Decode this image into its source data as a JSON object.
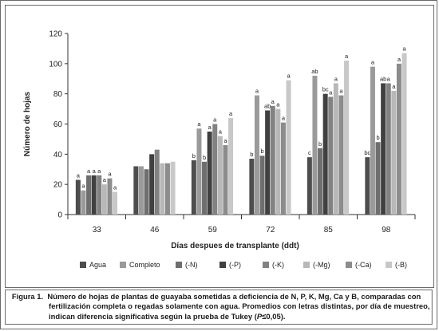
{
  "chart_data": {
    "type": "bar",
    "ylabel": "Número de hojas",
    "xlabel": "Días despues de transplante (ddt)",
    "ylim": [
      0,
      120
    ],
    "yticks": [
      "0",
      "20",
      "40",
      "60",
      "80",
      "100",
      "120"
    ],
    "grid": false,
    "legend_position": "bottom",
    "categories": [
      "33",
      "46",
      "59",
      "72",
      "85",
      "98"
    ],
    "series": [
      {
        "name": "Agua",
        "color": "#4d4d4d",
        "values": [
          23,
          32,
          36,
          37,
          38,
          38
        ],
        "labels": [
          "a",
          "",
          "b",
          "b",
          "c",
          "bc"
        ]
      },
      {
        "name": "Completo",
        "color": "#9a9a9a",
        "values": [
          16,
          32,
          57,
          79,
          92,
          98
        ],
        "labels": [
          "a",
          "",
          "a",
          "a",
          "ab",
          "a"
        ]
      },
      {
        "name": "(-N)",
        "color": "#6e6e6e",
        "values": [
          26,
          30,
          35,
          39,
          44,
          48
        ],
        "labels": [
          "a",
          "",
          "b",
          "b",
          "b",
          "b"
        ]
      },
      {
        "name": "(-P)",
        "color": "#404040",
        "values": [
          26,
          40,
          55,
          69,
          80,
          87
        ],
        "labels": [
          "a",
          "",
          "a",
          "ab",
          "bc",
          "ab"
        ]
      },
      {
        "name": "(-K)",
        "color": "#828282",
        "values": [
          26,
          43,
          60,
          72,
          78,
          87
        ],
        "labels": [
          "a",
          "",
          "a",
          "a",
          "a",
          "a"
        ]
      },
      {
        "name": "(-Mg)",
        "color": "#b8b8b8",
        "values": [
          20,
          34,
          52,
          70,
          87,
          82
        ],
        "labels": [
          "a",
          "",
          "a",
          "a",
          "a",
          "a"
        ]
      },
      {
        "name": "(-Ca)",
        "color": "#8c8c8c",
        "values": [
          24,
          34,
          46,
          61,
          79,
          100
        ],
        "labels": [
          "a",
          "",
          "a",
          "a",
          "a",
          "a"
        ]
      },
      {
        "name": "(-B)",
        "color": "#c8c8c8",
        "values": [
          15,
          35,
          64,
          89,
          102,
          107
        ],
        "labels": [
          "a",
          "",
          "a",
          "a",
          "a",
          "a"
        ]
      }
    ]
  },
  "caption": {
    "label": "Figura 1.",
    "line1": "Número de hojas de plantas de guayaba sometidas a deficiencia de N, P, K, Mg, Ca y B, comparadas con",
    "line2": "fertilización completa o regadas solamente con agua. Promedios con letras distintas, por día de muestreo,",
    "line3_pre": "indican diferencia significativa según la prueba de Tukey (",
    "line3_italic": "P",
    "line3_post": "≤0,05)."
  }
}
